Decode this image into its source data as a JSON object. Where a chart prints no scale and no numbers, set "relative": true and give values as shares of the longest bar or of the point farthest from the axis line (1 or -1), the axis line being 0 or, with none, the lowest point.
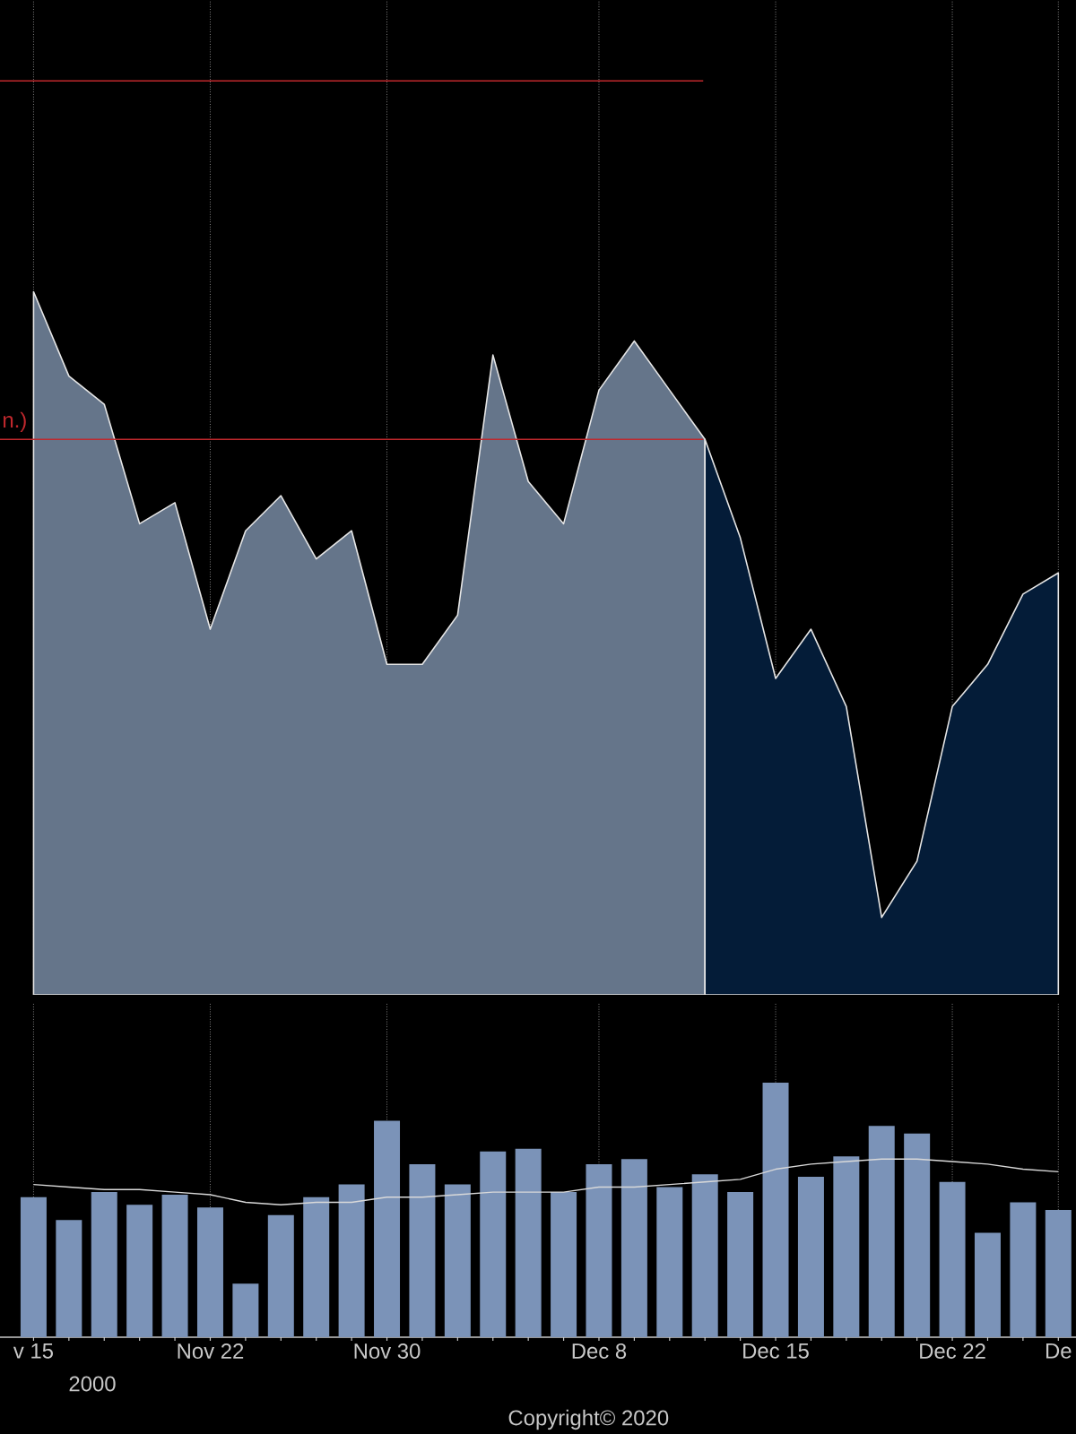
{
  "chart_data": [
    {
      "type": "area",
      "relative": true,
      "grid": "x",
      "tick_labels": false,
      "categories": [
        null,
        null,
        null,
        null,
        null,
        null,
        null,
        null,
        null,
        null,
        null,
        null,
        null,
        null,
        null,
        null,
        null,
        null,
        null,
        null,
        null,
        null,
        null,
        null,
        null,
        null,
        null,
        null,
        null,
        null
      ],
      "series": [
        {
          "color": "#65758a",
          "values": [
            1.0,
            0.88,
            0.84,
            0.67,
            0.7,
            0.52,
            0.66,
            0.71,
            0.62,
            0.66,
            0.47,
            0.47,
            0.54,
            0.91,
            0.73,
            0.67,
            0.86,
            0.93,
            0.86,
            0.79,
            null,
            null,
            null,
            null,
            null,
            null,
            null,
            null,
            null,
            null
          ]
        },
        {
          "color": "#041c38",
          "values": [
            null,
            null,
            null,
            null,
            null,
            null,
            null,
            null,
            null,
            null,
            null,
            null,
            null,
            null,
            null,
            null,
            null,
            null,
            null,
            0.79,
            0.65,
            0.45,
            0.52,
            0.41,
            0.11,
            0.19,
            0.41,
            0.47,
            0.57,
            0.6
          ]
        }
      ],
      "ref_lines": [
        {
          "axis": "y",
          "value": 1.3,
          "color": "#c0282d"
        },
        {
          "axis": "y",
          "value": 0.79,
          "label": "n.)",
          "color": "#c0282d"
        }
      ]
    },
    {
      "type": "bar",
      "relative": true,
      "grid": "x",
      "categories": [
        "v 15",
        null,
        null,
        null,
        null,
        "Nov 22",
        null,
        null,
        null,
        null,
        "Nov 30",
        null,
        null,
        null,
        null,
        null,
        "Dec 8",
        null,
        null,
        null,
        null,
        "Dec 15",
        null,
        null,
        null,
        null,
        "Dec 22",
        null,
        null,
        "De"
      ],
      "series": [
        {
          "color": "#7b93b8",
          "values": [
            0.55,
            0.46,
            0.57,
            0.52,
            0.56,
            0.51,
            0.21,
            0.48,
            0.55,
            0.6,
            0.85,
            0.68,
            0.6,
            0.73,
            0.74,
            0.57,
            0.68,
            0.7,
            0.59,
            0.64,
            0.57,
            1.0,
            0.63,
            0.71,
            0.83,
            0.8,
            0.61,
            0.41,
            0.53,
            0.5
          ]
        },
        {
          "type": "line",
          "color": "#d9d9d9",
          "values": [
            0.6,
            0.59,
            0.58,
            0.58,
            0.57,
            0.56,
            0.53,
            0.52,
            0.53,
            0.53,
            0.55,
            0.55,
            0.56,
            0.57,
            0.57,
            0.57,
            0.59,
            0.59,
            0.6,
            0.61,
            0.62,
            0.66,
            0.68,
            0.69,
            0.7,
            0.7,
            0.69,
            0.68,
            0.66,
            0.65
          ]
        }
      ],
      "annotations": [
        "2000",
        "Copyright© 2020"
      ]
    }
  ]
}
